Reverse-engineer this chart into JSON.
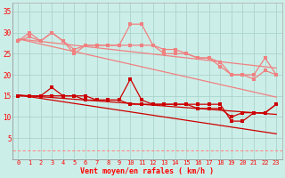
{
  "xlabel": "Vent moyen/en rafales ( km/h )",
  "background_color": "#cceee8",
  "grid_color": "#aad4cc",
  "x": [
    0,
    1,
    2,
    3,
    4,
    5,
    6,
    7,
    8,
    9,
    10,
    11,
    12,
    13,
    14,
    15,
    16,
    17,
    18,
    19,
    20,
    21,
    22,
    23
  ],
  "line1": [
    28,
    30,
    28,
    30,
    28,
    26,
    27,
    27,
    27,
    27,
    32,
    32,
    27,
    25,
    25,
    25,
    24,
    24,
    23,
    20,
    20,
    20,
    24,
    20
  ],
  "line2": [
    28,
    29,
    28,
    30,
    28,
    25,
    27,
    27,
    27,
    27,
    27,
    27,
    27,
    26,
    26,
    25,
    24,
    24,
    22,
    20,
    20,
    19,
    21,
    20
  ],
  "line3_trend": [
    28.5,
    28.2,
    27.9,
    27.6,
    27.3,
    27.0,
    26.7,
    26.4,
    26.1,
    25.8,
    25.5,
    25.2,
    24.9,
    24.6,
    24.3,
    24.0,
    23.7,
    23.4,
    23.1,
    22.8,
    22.5,
    22.2,
    21.9,
    21.6
  ],
  "line4_trend": [
    28.5,
    27.9,
    27.3,
    26.7,
    26.1,
    25.5,
    24.9,
    24.3,
    23.7,
    23.1,
    22.5,
    21.9,
    21.3,
    20.7,
    20.1,
    19.5,
    18.9,
    18.3,
    17.7,
    17.1,
    16.5,
    15.9,
    15.3,
    14.7
  ],
  "line5": [
    15,
    15,
    15,
    17,
    15,
    15,
    15,
    14,
    14,
    14,
    19,
    14,
    13,
    13,
    13,
    13,
    13,
    13,
    13,
    9,
    9,
    11,
    11,
    13
  ],
  "line6": [
    15,
    15,
    15,
    15,
    15,
    15,
    14,
    14,
    14,
    14,
    13,
    13,
    13,
    13,
    13,
    13,
    12,
    12,
    12,
    10,
    11,
    11,
    11,
    13
  ],
  "line7_trend": [
    15.2,
    15.0,
    14.8,
    14.6,
    14.4,
    14.2,
    14.0,
    13.8,
    13.6,
    13.4,
    13.2,
    13.0,
    12.8,
    12.6,
    12.4,
    12.2,
    12.0,
    11.8,
    11.6,
    11.4,
    11.2,
    11.0,
    10.8,
    10.6
  ],
  "line8_trend": [
    15.2,
    14.8,
    14.4,
    14.0,
    13.6,
    13.2,
    12.8,
    12.4,
    12.0,
    11.6,
    11.2,
    10.8,
    10.4,
    10.0,
    9.6,
    9.2,
    8.8,
    8.4,
    8.0,
    7.6,
    7.2,
    6.8,
    6.4,
    6.0
  ],
  "dashed_y": 2.0,
  "color_light": "#f08080",
  "color_dark": "#cc0000",
  "color_dashed": "#ff8888",
  "ylim": [
    0,
    37
  ],
  "yticks": [
    5,
    10,
    15,
    20,
    25,
    30,
    35
  ],
  "xlim": [
    -0.5,
    23.5
  ]
}
